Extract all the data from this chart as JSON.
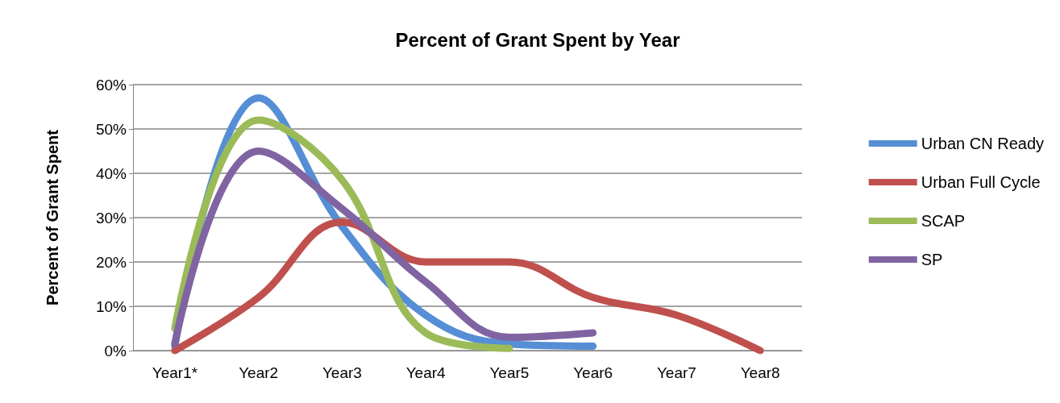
{
  "chart_data": {
    "type": "line",
    "title": "Percent of Grant Spent by Year",
    "ylabel": "Percent of Grant Spent",
    "categories": [
      "Year1*",
      "Year2",
      "Year3",
      "Year4",
      "Year5",
      "Year6",
      "Year7",
      "Year8"
    ],
    "series": [
      {
        "name": "Urban CN Ready",
        "color": "#558ed5",
        "values": [
          1,
          57,
          28,
          8,
          1.5,
          1,
          null,
          null
        ]
      },
      {
        "name": "Urban Full Cycle",
        "color": "#c0504d",
        "values": [
          0,
          12,
          29,
          20,
          20,
          12,
          8,
          0
        ]
      },
      {
        "name": "SCAP",
        "color": "#9bbb59",
        "values": [
          5,
          52,
          38.5,
          4,
          0.5,
          null,
          null,
          null
        ]
      },
      {
        "name": "SP",
        "color": "#8064a2",
        "values": [
          1.5,
          45,
          32,
          15.5,
          3,
          4,
          null,
          null
        ]
      }
    ],
    "ylim": [
      0,
      60
    ],
    "yticks": [
      {
        "value": 0,
        "label": "0%"
      },
      {
        "value": 10,
        "label": "10%"
      },
      {
        "value": 20,
        "label": "20%"
      },
      {
        "value": 30,
        "label": "30%"
      },
      {
        "value": 40,
        "label": "40%"
      },
      {
        "value": 50,
        "label": "50%"
      },
      {
        "value": 60,
        "label": "60%"
      }
    ],
    "grid": "y",
    "legend": "right",
    "marker": "none",
    "line_style": "solid"
  }
}
